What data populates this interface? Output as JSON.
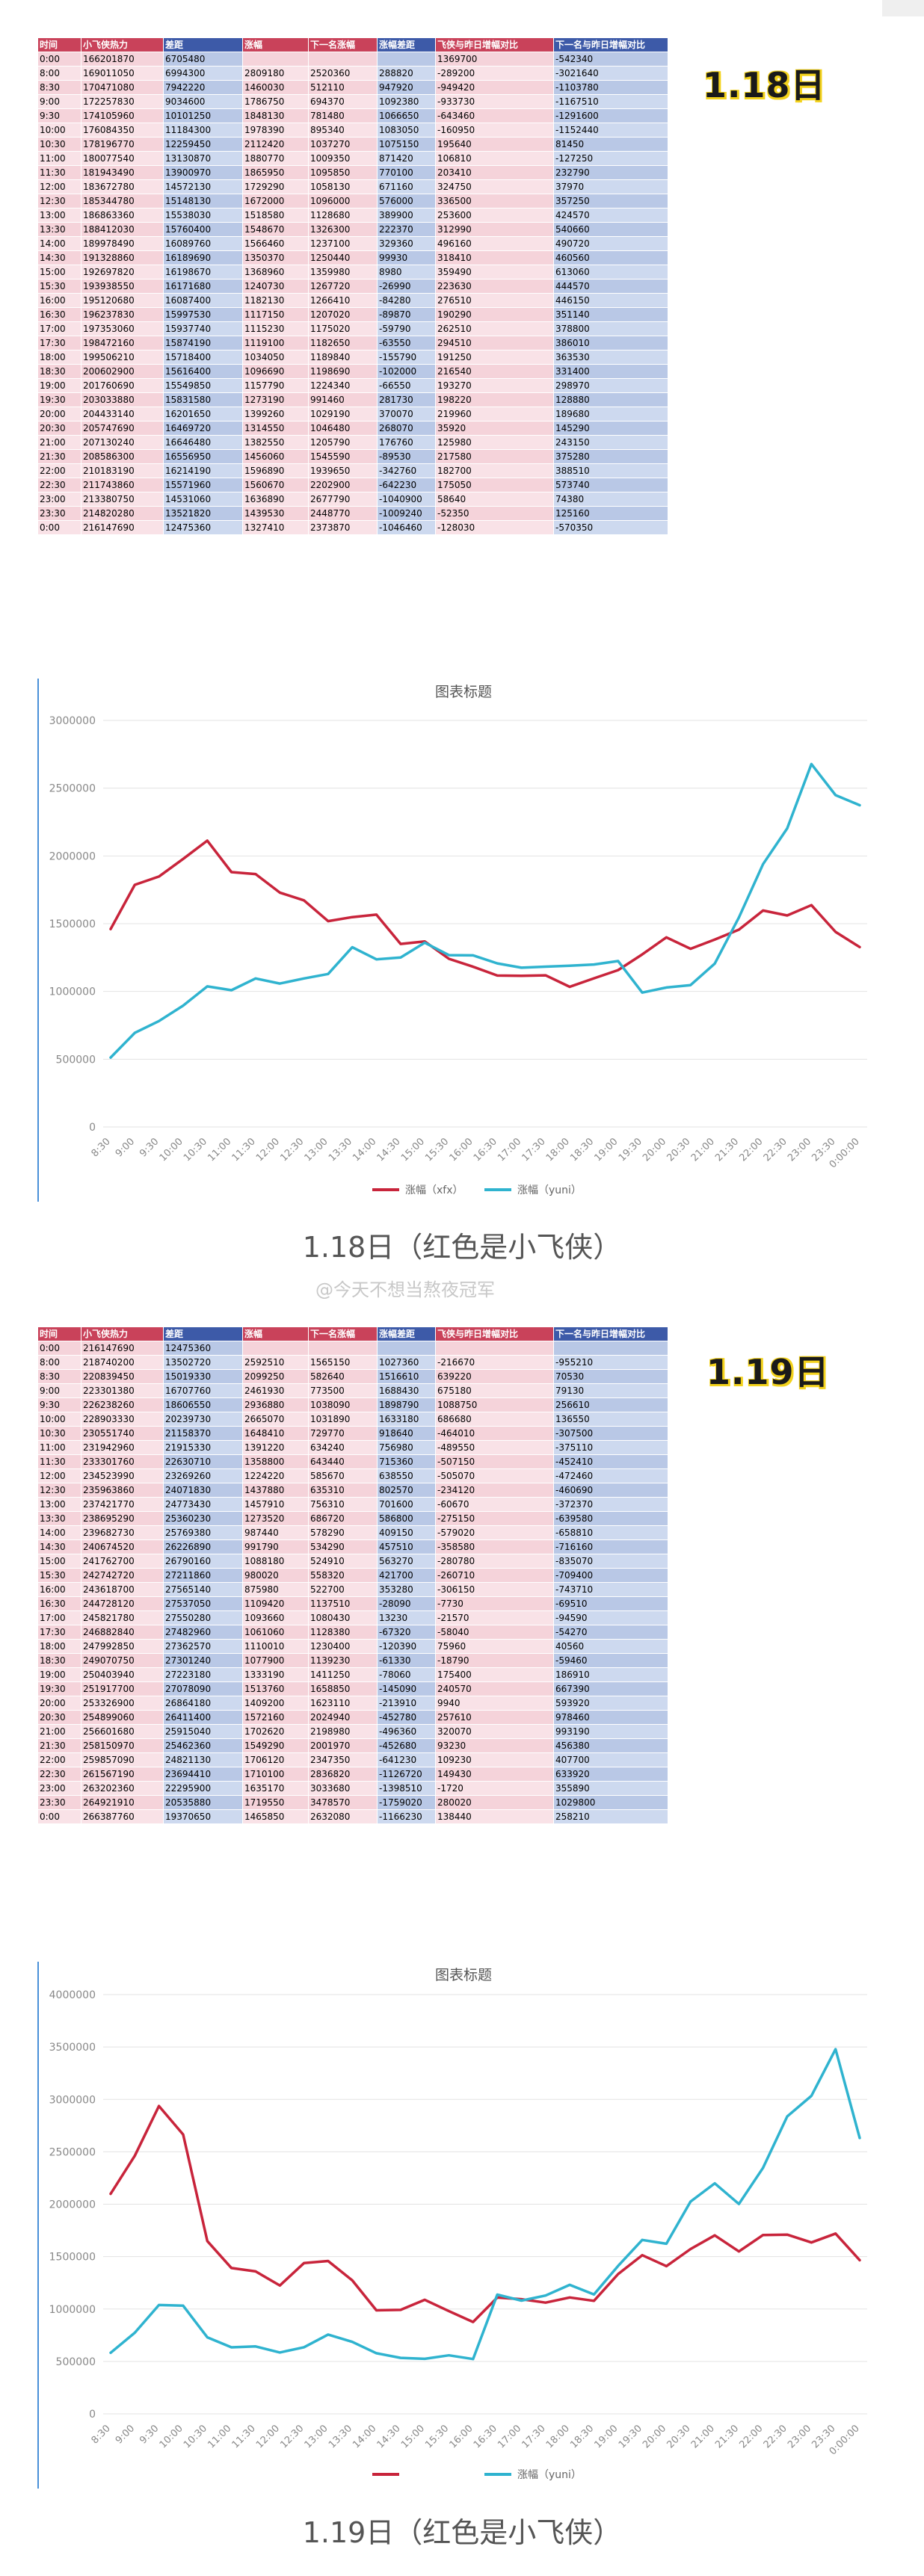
{
  "watermark": "@今天不想当熬夜冠军",
  "section1": {
    "date_badge": "1.18日",
    "caption": "1.18日（红色是小飞侠）",
    "table": {
      "headers": [
        "时间",
        "小飞侠热力",
        "差距",
        "涨幅",
        "下一名涨幅",
        "涨幅差距",
        "飞侠与昨日增幅对比",
        "下一名与昨日增幅对比"
      ],
      "rows": [
        [
          "0:00",
          "166201870",
          "6705480",
          "",
          "",
          "",
          "1369700",
          "-542340"
        ],
        [
          "8:00",
          "169011050",
          "6994300",
          "2809180",
          "2520360",
          "288820",
          "-289200",
          "-3021640"
        ],
        [
          "8:30",
          "170471080",
          "7942220",
          "1460030",
          "512110",
          "947920",
          "-949420",
          "-1103780"
        ],
        [
          "9:00",
          "172257830",
          "9034600",
          "1786750",
          "694370",
          "1092380",
          "-933730",
          "-1167510"
        ],
        [
          "9:30",
          "174105960",
          "10101250",
          "1848130",
          "781480",
          "1066650",
          "-643460",
          "-1291600"
        ],
        [
          "10:00",
          "176084350",
          "11184300",
          "1978390",
          "895340",
          "1083050",
          "-160950",
          "-1152440"
        ],
        [
          "10:30",
          "178196770",
          "12259450",
          "2112420",
          "1037270",
          "1075150",
          "195640",
          "81450"
        ],
        [
          "11:00",
          "180077540",
          "13130870",
          "1880770",
          "1009350",
          "871420",
          "106810",
          "-127250"
        ],
        [
          "11:30",
          "181943490",
          "13900970",
          "1865950",
          "1095850",
          "770100",
          "203410",
          "232790"
        ],
        [
          "12:00",
          "183672780",
          "14572130",
          "1729290",
          "1058130",
          "671160",
          "324750",
          "37970"
        ],
        [
          "12:30",
          "185344780",
          "15148130",
          "1672000",
          "1096000",
          "576000",
          "336500",
          "357250"
        ],
        [
          "13:00",
          "186863360",
          "15538030",
          "1518580",
          "1128680",
          "389900",
          "253600",
          "424570"
        ],
        [
          "13:30",
          "188412030",
          "15760400",
          "1548670",
          "1326300",
          "222370",
          "312990",
          "540660"
        ],
        [
          "14:00",
          "189978490",
          "16089760",
          "1566460",
          "1237100",
          "329360",
          "496160",
          "490720"
        ],
        [
          "14:30",
          "191328860",
          "16189690",
          "1350370",
          "1250440",
          "99930",
          "318410",
          "460560"
        ],
        [
          "15:00",
          "192697820",
          "16198670",
          "1368960",
          "1359980",
          "8980",
          "359490",
          "613060"
        ],
        [
          "15:30",
          "193938550",
          "16171680",
          "1240730",
          "1267720",
          "-26990",
          "223630",
          "444570"
        ],
        [
          "16:00",
          "195120680",
          "16087400",
          "1182130",
          "1266410",
          "-84280",
          "276510",
          "446150"
        ],
        [
          "16:30",
          "196237830",
          "15997530",
          "1117150",
          "1207020",
          "-89870",
          "190290",
          "351140"
        ],
        [
          "17:00",
          "197353060",
          "15937740",
          "1115230",
          "1175020",
          "-59790",
          "262510",
          "378800"
        ],
        [
          "17:30",
          "198472160",
          "15874190",
          "1119100",
          "1182650",
          "-63550",
          "294510",
          "386010"
        ],
        [
          "18:00",
          "199506210",
          "15718400",
          "1034050",
          "1189840",
          "-155790",
          "191250",
          "363530"
        ],
        [
          "18:30",
          "200602900",
          "15616400",
          "1096690",
          "1198690",
          "-102000",
          "216540",
          "331400"
        ],
        [
          "19:00",
          "201760690",
          "15549850",
          "1157790",
          "1224340",
          "-66550",
          "193270",
          "298970"
        ],
        [
          "19:30",
          "203033880",
          "15831580",
          "1273190",
          "991460",
          "281730",
          "198220",
          "128880"
        ],
        [
          "20:00",
          "204433140",
          "16201650",
          "1399260",
          "1029190",
          "370070",
          "219960",
          "189680"
        ],
        [
          "20:30",
          "205747690",
          "16469720",
          "1314550",
          "1046480",
          "268070",
          "35920",
          "145290"
        ],
        [
          "21:00",
          "207130240",
          "16646480",
          "1382550",
          "1205790",
          "176760",
          "125980",
          "243150"
        ],
        [
          "21:30",
          "208586300",
          "16556950",
          "1456060",
          "1545590",
          "-89530",
          "217580",
          "375280"
        ],
        [
          "22:00",
          "210183190",
          "16214190",
          "1596890",
          "1939650",
          "-342760",
          "182700",
          "388510"
        ],
        [
          "22:30",
          "211743860",
          "15571960",
          "1560670",
          "2202900",
          "-642230",
          "175050",
          "573740"
        ],
        [
          "23:00",
          "213380750",
          "14531060",
          "1636890",
          "2677790",
          "-1040900",
          "58640",
          "74380"
        ],
        [
          "23:30",
          "214820280",
          "13521820",
          "1439530",
          "2448770",
          "-1009240",
          "-52350",
          "125160"
        ],
        [
          "0:00",
          "216147690",
          "12475360",
          "1327410",
          "2373870",
          "-1046460",
          "-128030",
          "-570350"
        ]
      ]
    },
    "chart_data": {
      "type": "line",
      "title": "图表标题",
      "x": [
        "8:30",
        "9:00",
        "9:30",
        "10:00",
        "10:30",
        "11:00",
        "11:30",
        "12:00",
        "12:30",
        "13:00",
        "13:30",
        "14:00",
        "14:30",
        "15:00",
        "15:30",
        "16:00",
        "16:30",
        "17:00",
        "17:30",
        "18:00",
        "18:30",
        "19:00",
        "19:30",
        "20:00",
        "20:30",
        "21:00",
        "21:30",
        "22:00",
        "22:30",
        "23:00",
        "23:30",
        "0:00:00"
      ],
      "ylim": [
        0,
        3000000
      ],
      "yticks": [
        "0",
        "500000",
        "1000000",
        "1500000",
        "2000000",
        "2500000",
        "3000000"
      ],
      "series": [
        {
          "name": "涨幅（xfx）",
          "color": "#c8243b",
          "values": [
            1460030,
            1786750,
            1848130,
            1978390,
            2112420,
            1880770,
            1865950,
            1729290,
            1672000,
            1518580,
            1548670,
            1566460,
            1350370,
            1368960,
            1240730,
            1182130,
            1117150,
            1115230,
            1119100,
            1034050,
            1096690,
            1157790,
            1273190,
            1399260,
            1314550,
            1382550,
            1456060,
            1596890,
            1560670,
            1636890,
            1439530,
            1327410
          ]
        },
        {
          "name": "涨幅（yuni）",
          "color": "#2fb3cf",
          "values": [
            512110,
            694370,
            781480,
            895340,
            1037270,
            1009350,
            1095850,
            1058130,
            1096000,
            1128680,
            1326300,
            1237100,
            1250440,
            1359980,
            1267720,
            1266410,
            1207020,
            1175020,
            1182650,
            1189840,
            1198690,
            1224340,
            991460,
            1029190,
            1046480,
            1205790,
            1545590,
            1939650,
            2202900,
            2677790,
            2448770,
            2373870
          ]
        }
      ]
    }
  },
  "section2": {
    "date_badge": "1.19日",
    "caption": "1.19日（红色是小飞侠）",
    "table": {
      "headers": [
        "时间",
        "小飞侠热力",
        "差距",
        "涨幅",
        "下一名涨幅",
        "涨幅差距",
        "飞侠与昨日增幅对比",
        "下一名与昨日增幅对比"
      ],
      "rows": [
        [
          "0:00",
          "216147690",
          "12475360",
          "",
          "",
          "",
          "",
          ""
        ],
        [
          "8:00",
          "218740200",
          "13502720",
          "2592510",
          "1565150",
          "1027360",
          "-216670",
          "-955210"
        ],
        [
          "8:30",
          "220839450",
          "15019330",
          "2099250",
          "582640",
          "1516610",
          "639220",
          "70530"
        ],
        [
          "9:00",
          "223301380",
          "16707760",
          "2461930",
          "773500",
          "1688430",
          "675180",
          "79130"
        ],
        [
          "9:30",
          "226238260",
          "18606550",
          "2936880",
          "1038090",
          "1898790",
          "1088750",
          "256610"
        ],
        [
          "10:00",
          "228903330",
          "20239730",
          "2665070",
          "1031890",
          "1633180",
          "686680",
          "136550"
        ],
        [
          "10:30",
          "230551740",
          "21158370",
          "1648410",
          "729770",
          "918640",
          "-464010",
          "-307500"
        ],
        [
          "11:00",
          "231942960",
          "21915330",
          "1391220",
          "634240",
          "756980",
          "-489550",
          "-375110"
        ],
        [
          "11:30",
          "233301760",
          "22630710",
          "1358800",
          "643440",
          "715360",
          "-507150",
          "-452410"
        ],
        [
          "12:00",
          "234523990",
          "23269260",
          "1224220",
          "585670",
          "638550",
          "-505070",
          "-472460"
        ],
        [
          "12:30",
          "235963860",
          "24071830",
          "1437880",
          "635310",
          "802570",
          "-234120",
          "-460690"
        ],
        [
          "13:00",
          "237421770",
          "24773430",
          "1457910",
          "756310",
          "701600",
          "-60670",
          "-372370"
        ],
        [
          "13:30",
          "238695290",
          "25360230",
          "1273520",
          "686720",
          "586800",
          "-275150",
          "-639580"
        ],
        [
          "14:00",
          "239682730",
          "25769380",
          "987440",
          "578290",
          "409150",
          "-579020",
          "-658810"
        ],
        [
          "14:30",
          "240674520",
          "26226890",
          "991790",
          "534290",
          "457510",
          "-358580",
          "-716160"
        ],
        [
          "15:00",
          "241762700",
          "26790160",
          "1088180",
          "524910",
          "563270",
          "-280780",
          "-835070"
        ],
        [
          "15:30",
          "242742720",
          "27211860",
          "980020",
          "558320",
          "421700",
          "-260710",
          "-709400"
        ],
        [
          "16:00",
          "243618700",
          "27565140",
          "875980",
          "522700",
          "353280",
          "-306150",
          "-743710"
        ],
        [
          "16:30",
          "244728120",
          "27537050",
          "1109420",
          "1137510",
          "-28090",
          "-7730",
          "-69510"
        ],
        [
          "17:00",
          "245821780",
          "27550280",
          "1093660",
          "1080430",
          "13230",
          "-21570",
          "-94590"
        ],
        [
          "17:30",
          "246882840",
          "27482960",
          "1061060",
          "1128380",
          "-67320",
          "-58040",
          "-54270"
        ],
        [
          "18:00",
          "247992850",
          "27362570",
          "1110010",
          "1230400",
          "-120390",
          "75960",
          "40560"
        ],
        [
          "18:30",
          "249070750",
          "27301240",
          "1077900",
          "1139230",
          "-61330",
          "-18790",
          "-59460"
        ],
        [
          "19:00",
          "250403940",
          "27223180",
          "1333190",
          "1411250",
          "-78060",
          "175400",
          "186910"
        ],
        [
          "19:30",
          "251917700",
          "27078090",
          "1513760",
          "1658850",
          "-145090",
          "240570",
          "667390"
        ],
        [
          "20:00",
          "253326900",
          "26864180",
          "1409200",
          "1623110",
          "-213910",
          "9940",
          "593920"
        ],
        [
          "20:30",
          "254899060",
          "26411400",
          "1572160",
          "2024940",
          "-452780",
          "257610",
          "978460"
        ],
        [
          "21:00",
          "256601680",
          "25915040",
          "1702620",
          "2198980",
          "-496360",
          "320070",
          "993190"
        ],
        [
          "21:30",
          "258150970",
          "25462360",
          "1549290",
          "2001970",
          "-452680",
          "93230",
          "456380"
        ],
        [
          "22:00",
          "259857090",
          "24821130",
          "1706120",
          "2347350",
          "-641230",
          "109230",
          "407700"
        ],
        [
          "22:30",
          "261567190",
          "23694410",
          "1710100",
          "2836820",
          "-1126720",
          "149430",
          "633920"
        ],
        [
          "23:00",
          "263202360",
          "22295900",
          "1635170",
          "3033680",
          "-1398510",
          "-1720",
          "355890"
        ],
        [
          "23:30",
          "264921910",
          "20535880",
          "1719550",
          "3478570",
          "-1759020",
          "280020",
          "1029800"
        ],
        [
          "0:00",
          "266387760",
          "19370650",
          "1465850",
          "2632080",
          "-1166230",
          "138440",
          "258210"
        ]
      ]
    },
    "chart_data": {
      "type": "line",
      "title": "图表标题",
      "x": [
        "8:30",
        "9:00",
        "9:30",
        "10:00",
        "10:30",
        "11:00",
        "11:30",
        "12:00",
        "12:30",
        "13:00",
        "13:30",
        "14:00",
        "14:30",
        "15:00",
        "15:30",
        "16:00",
        "16:30",
        "17:00",
        "17:30",
        "18:00",
        "18:30",
        "19:00",
        "19:30",
        "20:00",
        "20:30",
        "21:00",
        "21:30",
        "22:00",
        "22:30",
        "23:00",
        "23:30",
        "0:00:00"
      ],
      "ylim": [
        0,
        4000000
      ],
      "yticks": [
        "0",
        "500000",
        "1000000",
        "1500000",
        "2000000",
        "2500000",
        "3000000",
        "3500000",
        "4000000"
      ],
      "series": [
        {
          "name": "",
          "color": "#c8243b",
          "values": [
            2099250,
            2461930,
            2936880,
            2665070,
            1648410,
            1391220,
            1358800,
            1224220,
            1437880,
            1457910,
            1273520,
            987440,
            991790,
            1088180,
            980020,
            875980,
            1109420,
            1093660,
            1061060,
            1110010,
            1077900,
            1333190,
            1513760,
            1409200,
            1572160,
            1702620,
            1549290,
            1706120,
            1710100,
            1635170,
            1719550,
            1465850
          ]
        },
        {
          "name": "涨幅（yuni）",
          "color": "#2fb3cf",
          "values": [
            582640,
            773500,
            1038090,
            1031890,
            729770,
            634240,
            643440,
            585670,
            635310,
            756310,
            686720,
            578290,
            534290,
            524910,
            558320,
            522700,
            1137510,
            1080430,
            1128380,
            1230400,
            1139230,
            1411250,
            1658850,
            1623110,
            2024940,
            2198980,
            2001970,
            2347350,
            2836820,
            3033680,
            3478570,
            2632080
          ]
        }
      ]
    }
  }
}
